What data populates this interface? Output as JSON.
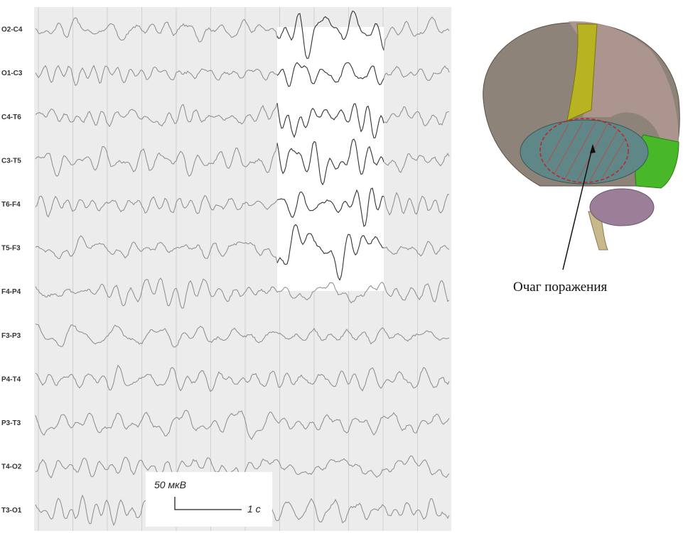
{
  "eeg": {
    "channels": [
      "O2-C4",
      "O1-C3",
      "C4-T6",
      "C3-T5",
      "T6-F4",
      "T5-F3",
      "F4-P4",
      "F3-P3",
      "P4-T4",
      "P3-T3",
      "T4-O2",
      "T3-O1"
    ],
    "scale": {
      "amplitude": "50 мкВ",
      "time": "1 с"
    }
  },
  "brain": {
    "caption": "Очаг поражения"
  }
}
